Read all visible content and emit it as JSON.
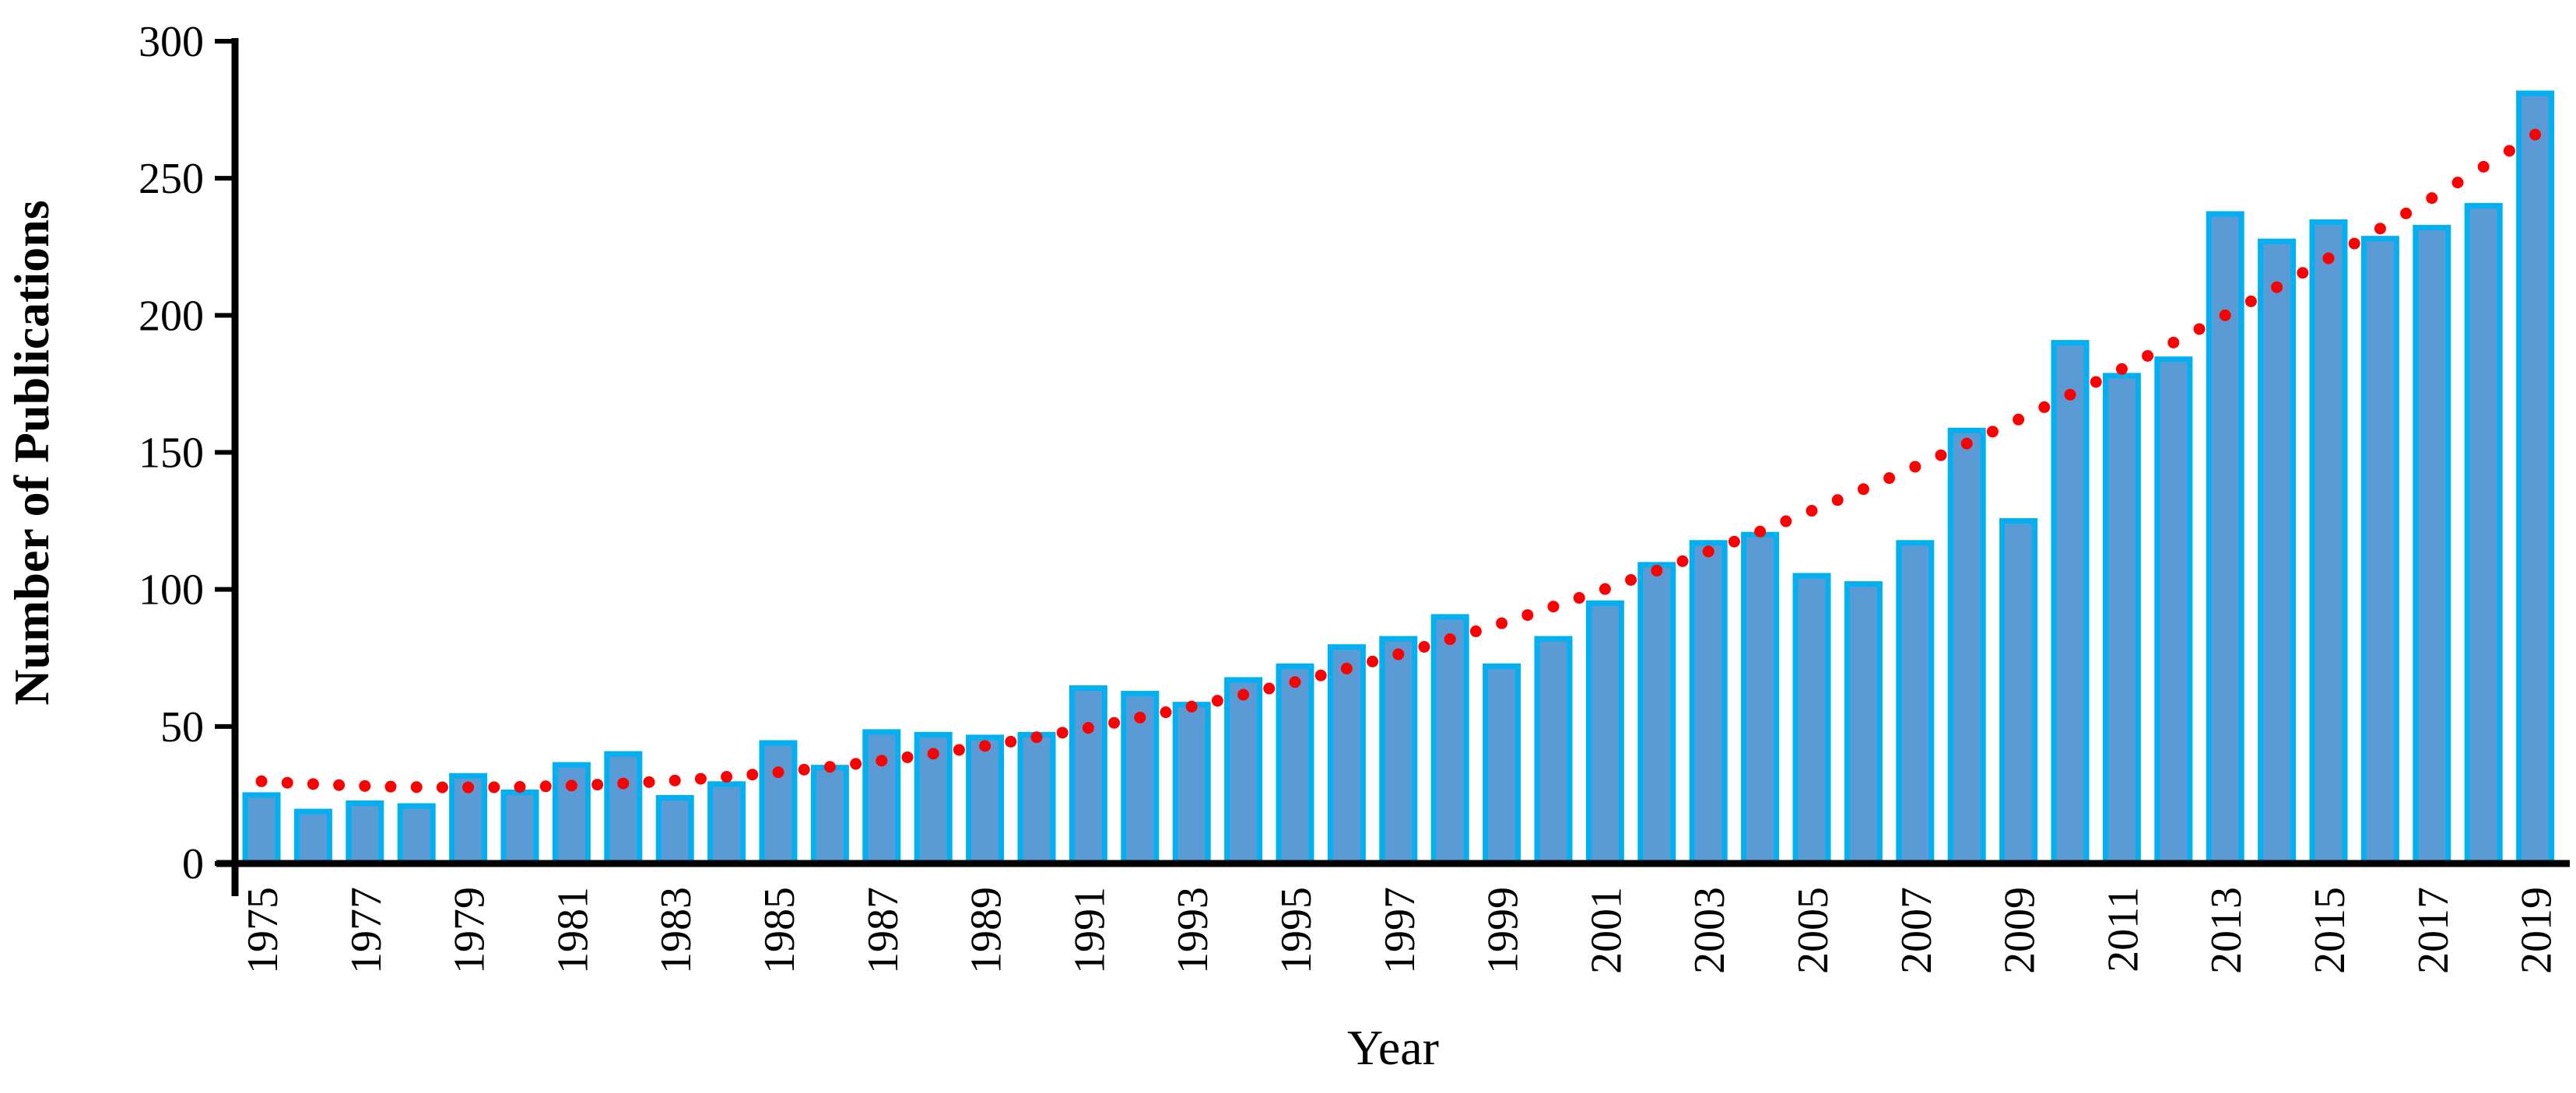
{
  "page": {
    "background": "#ffffff"
  },
  "chart_data": {
    "type": "bar",
    "title": "",
    "xlabel": "Year",
    "ylabel": "Number of Publications",
    "categories": [
      1975,
      1976,
      1977,
      1978,
      1979,
      1980,
      1981,
      1982,
      1983,
      1984,
      1985,
      1986,
      1987,
      1988,
      1989,
      1990,
      1991,
      1992,
      1993,
      1994,
      1995,
      1996,
      1997,
      1998,
      1999,
      2000,
      2001,
      2002,
      2003,
      2004,
      2005,
      2006,
      2007,
      2008,
      2009,
      2010,
      2011,
      2012,
      2013,
      2014,
      2015,
      2016,
      2017,
      2018,
      2019
    ],
    "values": [
      25,
      19,
      22,
      21,
      32,
      26,
      36,
      40,
      24,
      29,
      44,
      35,
      48,
      47,
      46,
      47,
      64,
      62,
      58,
      67,
      72,
      79,
      82,
      90,
      72,
      82,
      95,
      109,
      117,
      120,
      105,
      102,
      117,
      158,
      125,
      190,
      178,
      184,
      237,
      227,
      234,
      228,
      232,
      240,
      281
    ],
    "ylim": [
      0,
      300
    ],
    "yticks": [
      0,
      50,
      100,
      150,
      200,
      250,
      300
    ],
    "xtick_label_step": 2,
    "grid": false,
    "legend_position": "none",
    "bar_fill": "#5b9bd5",
    "bar_stroke": "#00b0f0",
    "axis_color": "#000000",
    "trendline": {
      "type": "quadratic",
      "style": "dotted",
      "color": "#ff0000",
      "a": 0.148,
      "b": -1.15,
      "c": 30.0,
      "t_start": 0,
      "t_end": 44,
      "t_step": 0.5,
      "description": "trend value = a*t^2 + b*t + c, where t = years since 1975"
    }
  }
}
